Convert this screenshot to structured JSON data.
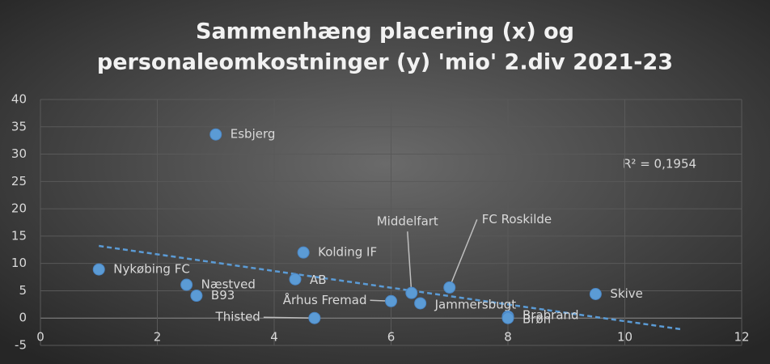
{
  "chart_data": {
    "type": "scatter",
    "title": [
      "Sammenhæng placering (x) og",
      "personaleomkostninger (y) 'mio' 2.div 2021-23"
    ],
    "series": [
      {
        "name": "2.div",
        "color": "#5b9bd5",
        "labels": [
          "Esbjerg",
          "Nykøbing FC",
          "Næstved",
          "B93",
          "Kolding IF",
          "AB",
          "Thisted",
          "Århus Fremad",
          "Middelfart",
          "Jammersbugt",
          "FC Roskilde",
          "Brabrand",
          "Brøn",
          "Skive"
        ],
        "x": [
          3.0,
          1.0,
          2.5,
          2.67,
          4.5,
          4.36,
          4.69,
          6.0,
          6.35,
          6.5,
          7.0,
          8.0,
          8.0,
          9.5
        ],
        "values": [
          33.6,
          8.9,
          6.1,
          4.1,
          12.0,
          7.1,
          0,
          3.1,
          4.6,
          2.7,
          5.6,
          0.3,
          0,
          4.4
        ]
      }
    ],
    "trendline": {
      "x": [
        1,
        11
      ],
      "values": [
        13.2,
        -2.1
      ],
      "r2_label": "R² = 0,1954"
    },
    "xlim": [
      0,
      12
    ],
    "xticks": [
      0,
      2,
      4,
      6,
      8,
      10,
      12
    ],
    "ylim": [
      -5,
      40
    ],
    "yticks": [
      -5,
      0,
      5,
      10,
      15,
      20,
      25,
      30,
      35,
      40
    ],
    "grid": true
  }
}
